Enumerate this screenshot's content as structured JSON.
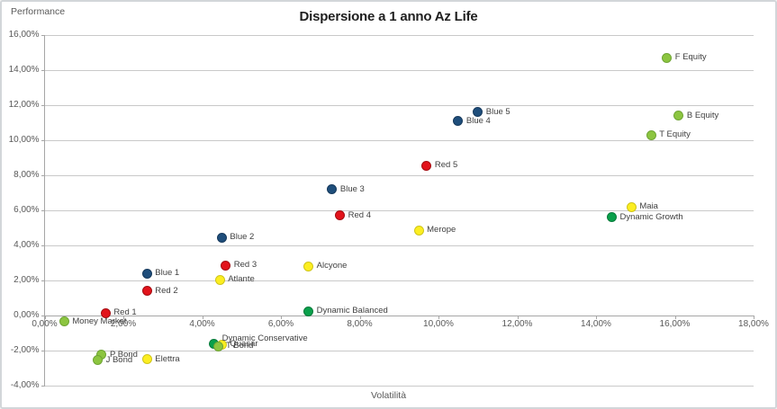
{
  "chart_data": {
    "type": "scatter",
    "title": "Dispersione a 1 anno Az Life",
    "xlabel": "Volatilità",
    "ylabel": "Performance",
    "xlim": [
      0,
      18
    ],
    "ylim": [
      -4,
      16
    ],
    "grid": "horizontal",
    "legend": "none",
    "x_ticks": [
      {
        "value": 0,
        "label": "0,00%"
      },
      {
        "value": 2,
        "label": "2,00%"
      },
      {
        "value": 4,
        "label": "4,00%"
      },
      {
        "value": 6,
        "label": "6,00%"
      },
      {
        "value": 8,
        "label": "8,00%"
      },
      {
        "value": 10,
        "label": "10,00%"
      },
      {
        "value": 12,
        "label": "12,00%"
      },
      {
        "value": 14,
        "label": "14,00%"
      },
      {
        "value": 16,
        "label": "16,00%"
      },
      {
        "value": 18,
        "label": "18,00%"
      }
    ],
    "y_ticks": [
      {
        "value": 16,
        "label": "16,00%"
      },
      {
        "value": 14,
        "label": "14,00%"
      },
      {
        "value": 12,
        "label": "12,00%"
      },
      {
        "value": 10,
        "label": "10,00%"
      },
      {
        "value": 8,
        "label": "8,00%"
      },
      {
        "value": 6,
        "label": "6,00%"
      },
      {
        "value": 4,
        "label": "4,00%"
      },
      {
        "value": 2,
        "label": "2,00%"
      },
      {
        "value": 0,
        "label": "0,00%"
      },
      {
        "value": -2,
        "label": "-2,00%"
      },
      {
        "value": -4,
        "label": "-4,00%"
      }
    ],
    "series": [
      {
        "name": "yellow-funds",
        "color": "#fcee21",
        "border_color": "#cfc51b",
        "points": [
          {
            "label": "Quasar",
            "x": 4.5,
            "y": -1.65
          },
          {
            "label": "Elettra",
            "x": 2.6,
            "y": -2.5
          },
          {
            "label": "Atlante",
            "x": 4.45,
            "y": 2.05
          },
          {
            "label": "Alcyone",
            "x": 6.7,
            "y": 2.8
          },
          {
            "label": "Merope",
            "x": 9.5,
            "y": 4.85
          },
          {
            "label": "Maia",
            "x": 14.9,
            "y": 6.2
          }
        ]
      },
      {
        "name": "dynamic-funds",
        "color": "#0aa04b",
        "border_color": "#077a3a",
        "points": [
          {
            "label": "Dynamic Conservative",
            "x": 4.3,
            "y": -1.6
          },
          {
            "label": "Dynamic Balanced",
            "x": 6.7,
            "y": 0.25
          },
          {
            "label": "Dynamic Growth",
            "x": 14.4,
            "y": 5.6
          }
        ]
      },
      {
        "name": "light-green-funds",
        "color": "#8cc540",
        "border_color": "#6fa434",
        "points": [
          {
            "label": "Money Market",
            "x": 0.5,
            "y": -0.35
          },
          {
            "label": "P Bond",
            "x": 1.45,
            "y": -2.25
          },
          {
            "label": "J Bond",
            "x": 1.35,
            "y": -2.55
          },
          {
            "label": "T Bond",
            "x": 4.4,
            "y": -1.75
          },
          {
            "label": "T Equity",
            "x": 15.4,
            "y": 10.3
          },
          {
            "label": "B Equity",
            "x": 16.1,
            "y": 11.4
          },
          {
            "label": "F Equity",
            "x": 15.8,
            "y": 14.7
          }
        ]
      },
      {
        "name": "red-funds",
        "color": "#e2131b",
        "border_color": "#a50d12",
        "points": [
          {
            "label": "Red 1",
            "x": 1.55,
            "y": 0.15
          },
          {
            "label": "Red 2",
            "x": 2.6,
            "y": 1.4
          },
          {
            "label": "Red 3",
            "x": 4.6,
            "y": 2.85
          },
          {
            "label": "Red 4",
            "x": 7.5,
            "y": 5.7
          },
          {
            "label": "Red 5",
            "x": 9.7,
            "y": 8.55
          }
        ]
      },
      {
        "name": "blue-funds",
        "color": "#1f4e7b",
        "border_color": "#16395c",
        "points": [
          {
            "label": "Blue 1",
            "x": 2.6,
            "y": 2.4
          },
          {
            "label": "Blue 2",
            "x": 4.5,
            "y": 4.45
          },
          {
            "label": "Blue 3",
            "x": 7.3,
            "y": 7.2
          },
          {
            "label": "Blue 4",
            "x": 10.5,
            "y": 11.1
          },
          {
            "label": "Blue 5",
            "x": 11.0,
            "y": 11.6
          }
        ]
      }
    ]
  }
}
